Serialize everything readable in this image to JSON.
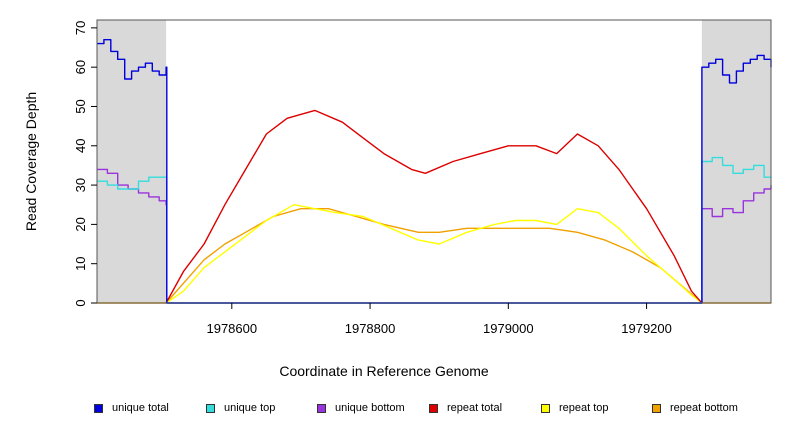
{
  "chart_data": {
    "type": "line",
    "title": "",
    "xlabel": "Coordinate in Reference Genome",
    "ylabel": "Read Coverage Depth",
    "xlim": [
      1978405,
      1979380
    ],
    "ylim": [
      0,
      72
    ],
    "xticks": [
      1978600,
      1978800,
      1979000,
      1979200
    ],
    "yticks": [
      0,
      10,
      20,
      30,
      40,
      50,
      60,
      70
    ],
    "shaded_regions": [
      {
        "x": [
          1978405,
          1978505
        ],
        "color": "#d9d9d9"
      },
      {
        "x": [
          1979280,
          1979380
        ],
        "color": "#d9d9d9"
      }
    ],
    "grid": false,
    "legend_position": "bottom",
    "series": [
      {
        "name": "unique total",
        "color": "#0000dd",
        "step": true,
        "x": [
          1978405,
          1978415,
          1978425,
          1978435,
          1978445,
          1978455,
          1978465,
          1978475,
          1978485,
          1978495,
          1978505,
          1978506,
          1979279,
          1979280,
          1979290,
          1979300,
          1979310,
          1979320,
          1979330,
          1979340,
          1979350,
          1979360,
          1979370,
          1979380
        ],
        "y": [
          66,
          67,
          64,
          62,
          57,
          59,
          60,
          61,
          59,
          58,
          60,
          0,
          0,
          60,
          61,
          62,
          58,
          56,
          59,
          61,
          62,
          63,
          62,
          60
        ]
      },
      {
        "name": "unique top",
        "color": "#33dddd",
        "step": true,
        "x": [
          1978405,
          1978420,
          1978435,
          1978450,
          1978465,
          1978480,
          1978495,
          1978505,
          1978506,
          1979279,
          1979280,
          1979295,
          1979310,
          1979325,
          1979340,
          1979355,
          1979370,
          1979380
        ],
        "y": [
          31,
          30,
          29,
          29,
          31,
          32,
          32,
          32,
          0,
          0,
          36,
          37,
          35,
          33,
          34,
          35,
          32,
          32
        ]
      },
      {
        "name": "unique bottom",
        "color": "#9933dd",
        "step": true,
        "x": [
          1978405,
          1978420,
          1978435,
          1978450,
          1978465,
          1978480,
          1978495,
          1978505,
          1978506,
          1979279,
          1979280,
          1979295,
          1979310,
          1979325,
          1979340,
          1979355,
          1979370,
          1979380
        ],
        "y": [
          34,
          33,
          30,
          29,
          28,
          27,
          26,
          25,
          0,
          0,
          24,
          22,
          24,
          23,
          26,
          28,
          29,
          30
        ],
        "clip": true
      },
      {
        "name": "repeat total",
        "color": "#dd0000",
        "step": false,
        "x": [
          1978505,
          1978530,
          1978560,
          1978590,
          1978620,
          1978650,
          1978680,
          1978720,
          1978760,
          1978790,
          1978820,
          1978860,
          1978880,
          1978920,
          1978960,
          1979000,
          1979040,
          1979070,
          1979100,
          1979130,
          1979160,
          1979200,
          1979240,
          1979265,
          1979280
        ],
        "y": [
          0,
          8,
          15,
          25,
          34,
          43,
          47,
          49,
          46,
          42,
          38,
          34,
          33,
          36,
          38,
          40,
          40,
          38,
          43,
          40,
          34,
          24,
          12,
          3,
          0
        ]
      },
      {
        "name": "repeat top",
        "color": "#ffff00",
        "step": false,
        "x": [
          1978505,
          1978530,
          1978560,
          1978590,
          1978620,
          1978650,
          1978690,
          1978720,
          1978750,
          1978790,
          1978830,
          1978870,
          1978900,
          1978940,
          1978980,
          1979010,
          1979040,
          1979070,
          1979100,
          1979130,
          1979160,
          1979200,
          1979240,
          1979265,
          1979280
        ],
        "y": [
          0,
          3,
          9,
          13,
          17,
          21,
          25,
          24,
          23,
          22,
          19,
          16,
          15,
          18,
          20,
          21,
          21,
          20,
          24,
          23,
          19,
          12,
          6,
          2,
          0
        ]
      },
      {
        "name": "repeat bottom",
        "color": "#f0a000",
        "step": false,
        "x": [
          1978405,
          1978505,
          1978530,
          1978560,
          1978590,
          1978620,
          1978660,
          1978700,
          1978740,
          1978780,
          1978820,
          1978870,
          1978900,
          1978940,
          1978980,
          1979020,
          1979060,
          1979100,
          1979140,
          1979180,
          1979220,
          1979260,
          1979280,
          1979380
        ],
        "y": [
          0,
          0,
          5,
          11,
          15,
          18,
          22,
          24,
          24,
          22,
          20,
          18,
          18,
          19,
          19,
          19,
          19,
          18,
          16,
          13,
          9,
          3,
          0,
          0
        ]
      }
    ]
  }
}
